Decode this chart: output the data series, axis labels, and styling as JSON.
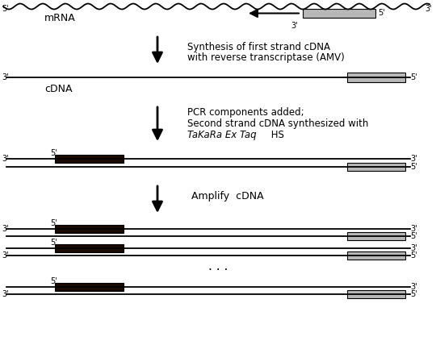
{
  "bg_color": "#ffffff",
  "line_color": "#000000",
  "dark_box_color": "#1a0a00",
  "gray_box_color": "#b8b8b8",
  "fig_width": 5.4,
  "fig_height": 4.33,
  "dpi": 100,
  "label_step1_l1": "Synthesis of first strand cDNA",
  "label_step1_l2": "with reverse transcriptase (AMV)",
  "label_step2_l1": "PCR components added;",
  "label_step2_l2": "Second strand cDNA synthesized with",
  "label_step2_l3_italic": "TaKaRa Ex Taq",
  "label_step2_l3_normal": " HS",
  "label_step3": "Amplify  cDNA",
  "mrna_label": "mRNA",
  "cdna_label": "cDNA"
}
